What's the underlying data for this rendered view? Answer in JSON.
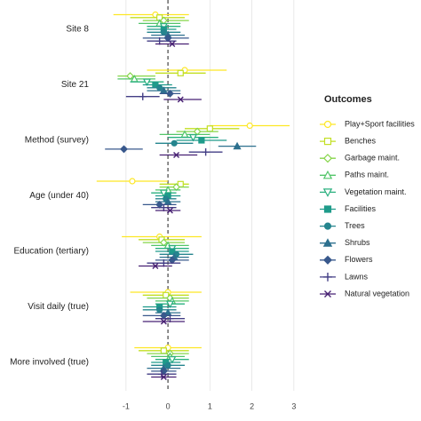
{
  "chart_data": {
    "type": "forest",
    "categories": [
      "Site 8",
      "Site 21",
      "Method (survey)",
      "Age (under 40)",
      "Education (tertiary)",
      "Visit daily (true)",
      "More involved (true)"
    ],
    "xlim": [
      -1.78,
      3.3
    ],
    "xticks": [
      -1,
      0,
      1,
      2,
      3
    ],
    "grid": true,
    "legend_title": "Outcomes",
    "legend": "right",
    "series": [
      {
        "name": "Play+Sport facilities",
        "color": "#fde725",
        "shape": "circle-open",
        "values": [
          -0.3,
          0.4,
          1.95,
          -0.85,
          -0.2,
          0,
          0
        ],
        "lower": [
          -1.3,
          -0.5,
          1.0,
          -1.7,
          -1.1,
          -0.9,
          -0.8
        ],
        "upper": [
          0.5,
          1.4,
          2.9,
          0,
          0.8,
          0.8,
          0.8
        ]
      },
      {
        "name": "Benches",
        "color": "#c2df23",
        "shape": "square-open",
        "values": [
          -0.2,
          0.3,
          1.0,
          0.3,
          -0.15,
          -0.05,
          -0.1
        ],
        "lower": [
          -0.9,
          -0.3,
          0.4,
          -0.2,
          -0.7,
          -0.6,
          -0.7
        ],
        "upper": [
          0.4,
          0.9,
          1.7,
          0.5,
          0.4,
          0.5,
          0.5
        ]
      },
      {
        "name": "Garbage maint.",
        "color": "#86d549",
        "shape": "diamond-open",
        "values": [
          -0.1,
          -0.9,
          0.7,
          0.2,
          -0.1,
          0.05,
          0.05
        ],
        "lower": [
          -0.6,
          -1.2,
          0.2,
          -0.2,
          -0.6,
          -0.5,
          -0.5
        ],
        "upper": [
          0.5,
          -0.3,
          1.2,
          0.5,
          0.4,
          0.5,
          0.5
        ]
      },
      {
        "name": "Paths maint.",
        "color": "#52c569",
        "shape": "triangle-open",
        "values": [
          -0.2,
          -0.8,
          0.4,
          0,
          0,
          0.1,
          0.05
        ],
        "lower": [
          -0.7,
          -1.2,
          -0.2,
          -0.3,
          -0.4,
          -0.3,
          -0.4
        ],
        "upper": [
          0.3,
          -0.3,
          1.0,
          0.3,
          0.5,
          0.5,
          0.4
        ]
      },
      {
        "name": "Vegetation maint.",
        "color": "#2ab07f",
        "shape": "triangle-down-open",
        "values": [
          -0.1,
          -0.5,
          0.6,
          -0.1,
          0.1,
          0.05,
          0.1
        ],
        "lower": [
          -0.5,
          -0.9,
          0,
          -0.4,
          -0.3,
          -0.3,
          -0.3
        ],
        "upper": [
          0.3,
          -0.1,
          1.2,
          0.2,
          0.5,
          0.4,
          0.5
        ]
      },
      {
        "name": "Facilities",
        "color": "#1e9b8a",
        "shape": "square",
        "values": [
          -0.1,
          -0.3,
          0.8,
          0,
          0.1,
          -0.2,
          -0.05
        ],
        "lower": [
          -0.5,
          -0.6,
          0.2,
          -0.3,
          -0.3,
          -0.6,
          -0.4
        ],
        "upper": [
          0.2,
          0.1,
          1.4,
          0.3,
          0.5,
          0.2,
          0.3
        ]
      },
      {
        "name": "Trees",
        "color": "#25858e",
        "shape": "circle",
        "values": [
          -0.1,
          -0.2,
          0.15,
          -0.05,
          0.2,
          -0.2,
          0
        ],
        "lower": [
          -0.5,
          -0.5,
          -0.3,
          -0.3,
          -0.2,
          -0.6,
          -0.4
        ],
        "upper": [
          0.3,
          0.2,
          0.6,
          0.2,
          0.6,
          0.2,
          0.4
        ]
      },
      {
        "name": "Shrubs",
        "color": "#2d708e",
        "shape": "triangle",
        "values": [
          0,
          -0.1,
          1.65,
          0,
          0.15,
          0,
          -0.1
        ],
        "lower": [
          -0.4,
          -0.5,
          1.2,
          -0.3,
          -0.2,
          -0.3,
          -0.5
        ],
        "upper": [
          0.4,
          0.3,
          2.1,
          0.3,
          0.5,
          0.3,
          0.3
        ]
      },
      {
        "name": "Flowers",
        "color": "#38588c",
        "shape": "diamond",
        "values": [
          0,
          0.05,
          -1.05,
          -0.2,
          0.1,
          -0.1,
          -0.1
        ],
        "lower": [
          -0.6,
          -0.2,
          -1.5,
          -0.6,
          -0.3,
          -0.6,
          -0.4
        ],
        "upper": [
          0.5,
          0.3,
          -0.6,
          0.2,
          0.5,
          0.3,
          0.2
        ]
      },
      {
        "name": "Lawns",
        "color": "#433e85",
        "shape": "plus",
        "values": [
          -0.2,
          -0.6,
          0.9,
          -0.1,
          -0.1,
          0.05,
          -0.15
        ],
        "lower": [
          -0.5,
          -1.0,
          0.5,
          -0.4,
          -0.5,
          -0.3,
          -0.5
        ],
        "upper": [
          0.2,
          -0.2,
          1.3,
          0.2,
          0.3,
          0.4,
          0.2
        ]
      },
      {
        "name": "Natural vegetation",
        "color": "#482173",
        "shape": "cross",
        "values": [
          0.1,
          0.3,
          0.2,
          0.05,
          -0.3,
          -0.1,
          -0.1
        ],
        "lower": [
          -0.3,
          -0.1,
          -0.2,
          -0.3,
          -0.7,
          -0.6,
          -0.4
        ],
        "upper": [
          0.5,
          0.8,
          0.7,
          0.3,
          0.1,
          0.4,
          0.2
        ]
      }
    ]
  }
}
